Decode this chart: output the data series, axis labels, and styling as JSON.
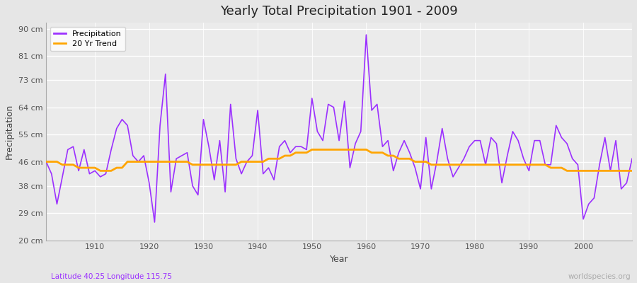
{
  "title": "Yearly Total Precipitation 1901 - 2009",
  "xlabel": "Year",
  "ylabel": "Precipitation",
  "subtitle": "Latitude 40.25 Longitude 115.75",
  "watermark": "worldspecies.org",
  "precip_color": "#9B30FF",
  "trend_color": "#FFA500",
  "fig_bg": "#E6E6E6",
  "plot_bg": "#EBEBEB",
  "ylim": [
    20,
    92
  ],
  "yticks": [
    20,
    29,
    38,
    46,
    55,
    64,
    73,
    81,
    90
  ],
  "xlim": [
    1901,
    2009
  ],
  "years": [
    1901,
    1902,
    1903,
    1904,
    1905,
    1906,
    1907,
    1908,
    1909,
    1910,
    1911,
    1912,
    1913,
    1914,
    1915,
    1916,
    1917,
    1918,
    1919,
    1920,
    1921,
    1922,
    1923,
    1924,
    1925,
    1926,
    1927,
    1928,
    1929,
    1930,
    1931,
    1932,
    1933,
    1934,
    1935,
    1936,
    1937,
    1938,
    1939,
    1940,
    1941,
    1942,
    1943,
    1944,
    1945,
    1946,
    1947,
    1948,
    1949,
    1950,
    1951,
    1952,
    1953,
    1954,
    1955,
    1956,
    1957,
    1958,
    1959,
    1960,
    1961,
    1962,
    1963,
    1964,
    1965,
    1966,
    1967,
    1968,
    1969,
    1970,
    1971,
    1972,
    1973,
    1974,
    1975,
    1976,
    1977,
    1978,
    1979,
    1980,
    1981,
    1982,
    1983,
    1984,
    1985,
    1986,
    1987,
    1988,
    1989,
    1990,
    1991,
    1992,
    1993,
    1994,
    1995,
    1996,
    1997,
    1998,
    1999,
    2000,
    2001,
    2002,
    2003,
    2004,
    2005,
    2006,
    2007,
    2008,
    2009
  ],
  "precip": [
    46,
    42,
    32,
    41,
    50,
    51,
    43,
    50,
    42,
    43,
    41,
    42,
    50,
    57,
    60,
    58,
    48,
    46,
    48,
    39,
    26,
    58,
    75,
    36,
    47,
    48,
    49,
    38,
    35,
    60,
    51,
    40,
    53,
    36,
    65,
    47,
    42,
    46,
    48,
    63,
    42,
    44,
    40,
    51,
    53,
    49,
    51,
    51,
    50,
    67,
    56,
    53,
    65,
    64,
    53,
    66,
    44,
    52,
    56,
    88,
    63,
    65,
    51,
    53,
    43,
    49,
    53,
    49,
    44,
    37,
    54,
    37,
    46,
    57,
    47,
    41,
    44,
    47,
    51,
    53,
    53,
    45,
    54,
    52,
    39,
    48,
    56,
    53,
    47,
    43,
    53,
    53,
    45,
    45,
    58,
    54,
    52,
    47,
    45,
    27,
    32,
    34,
    45,
    54,
    43,
    53,
    37,
    39,
    47
  ],
  "trend": [
    46,
    46,
    46,
    45,
    45,
    45,
    44,
    44,
    44,
    44,
    43,
    43,
    43,
    44,
    44,
    46,
    46,
    46,
    46,
    46,
    46,
    46,
    46,
    46,
    46,
    46,
    46,
    45,
    45,
    45,
    45,
    45,
    45,
    45,
    45,
    45,
    46,
    46,
    46,
    46,
    46,
    47,
    47,
    47,
    48,
    48,
    49,
    49,
    49,
    50,
    50,
    50,
    50,
    50,
    50,
    50,
    50,
    50,
    50,
    50,
    49,
    49,
    49,
    48,
    48,
    47,
    47,
    47,
    46,
    46,
    46,
    45,
    45,
    45,
    45,
    45,
    45,
    45,
    45,
    45,
    45,
    45,
    45,
    45,
    45,
    45,
    45,
    45,
    45,
    45,
    45,
    45,
    45,
    44,
    44,
    44,
    43,
    43,
    43,
    43,
    43,
    43,
    43,
    43,
    43,
    43,
    43,
    43,
    43
  ]
}
